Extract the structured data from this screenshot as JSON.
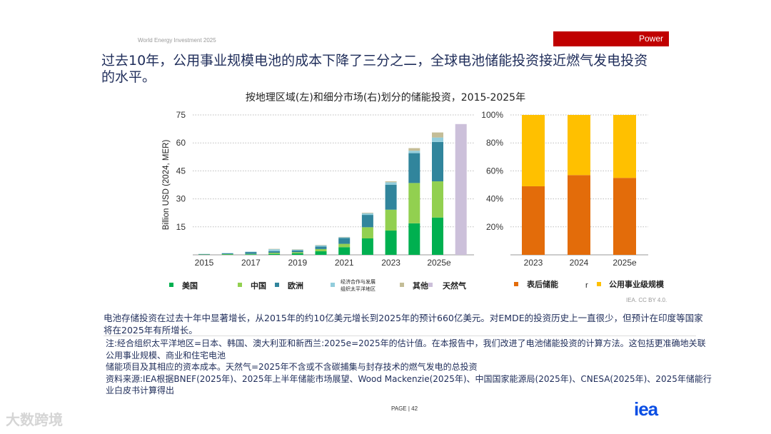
{
  "header": {
    "report": "World Energy Investment 2025",
    "section": "Power"
  },
  "title": "过去10年，公用事业规模电池的成本下降了三分之二，全球电池储能投资接近燃气发电投资的水平。",
  "chart_subtitle": "按地理区域(左)和细分市场(右)划分的储能投资，2015-2025年",
  "chart_data": [
    {
      "type": "bar",
      "stacked": true,
      "ylabel": "Billion USD (2024, MER)",
      "ylim": [
        0,
        75
      ],
      "yticks": [
        15,
        30,
        45,
        60,
        75
      ],
      "grid": true,
      "categories": [
        "2015",
        "2016",
        "2017",
        "2018",
        "2019",
        "2020",
        "2021",
        "2022",
        "2023",
        "2024",
        "2025e"
      ],
      "tick_labels": [
        "2015",
        "2017",
        "2019",
        "2021",
        "2023",
        "2025e"
      ],
      "series": [
        {
          "name": "美国",
          "color": "#00b050",
          "values": [
            0.1,
            0.2,
            0.3,
            0.5,
            0.8,
            1.9,
            4.1,
            8.8,
            13.0,
            16.9,
            20.0
          ]
        },
        {
          "name": "中国",
          "color": "#92d050",
          "values": [
            0.1,
            0.2,
            0.2,
            0.6,
            0.6,
            1.2,
            1.8,
            6.0,
            11.2,
            21.6,
            19.4
          ]
        },
        {
          "name": "欧洲",
          "color": "#31859c",
          "values": [
            0.2,
            0.4,
            1.0,
            0.9,
            0.9,
            1.3,
            3.1,
            6.6,
            13.4,
            16.0,
            21.1
          ]
        },
        {
          "name": "经济合作与发展组织太平洋地区",
          "color": "#92cddc",
          "values": [
            0.1,
            0.2,
            0.2,
            1.0,
            0.5,
            0.7,
            0.4,
            0.9,
            1.3,
            1.3,
            2.4
          ]
        },
        {
          "name": "其他",
          "color": "#c4bd97",
          "values": [
            0.0,
            0.0,
            0.0,
            0.2,
            0.2,
            0.2,
            0.2,
            0.3,
            0.5,
            1.4,
            2.7
          ]
        }
      ],
      "extra_bar": {
        "name": "天然气",
        "color": "#ccc0da",
        "value": 70.1
      }
    },
    {
      "type": "bar",
      "stacked": true,
      "percent": true,
      "ylim": [
        0,
        100
      ],
      "yticks": [
        "20%",
        "40%",
        "60%",
        "80%",
        "100%"
      ],
      "grid": true,
      "categories": [
        "2023",
        "2024",
        "2025e"
      ],
      "series": [
        {
          "name": "表后储能",
          "color": "#e36c0a",
          "values": [
            49,
            57,
            55
          ]
        },
        {
          "name": "公用事业级规模",
          "color": "#ffc000",
          "values": [
            51,
            43,
            45
          ]
        }
      ],
      "legend_separator": "r"
    }
  ],
  "credit": "IEA. CC BY 4.0.",
  "description": "电池存储投资在过去十年中显著增长，从2015年的约10亿美元增长到2025年的预计660亿美元。对EMDE的投资历史上一直很少，但预计在印度等国家将在2025年有所增长。",
  "notes": [
    "注:经合组织太平洋地区=日本、韩国、澳大利亚和新西兰:2025e=2025年的估计值。在本报告中，我们改进了电池储能投资的计算方法。这包括更准确地关联公用事业规模、商业和住宅电池",
    "储能项目及其相应的资本成本。天然气=2025年不含或不含碳捕集与封存技术的燃气发电的总投资",
    "资料来源:IEA根据BNEF(2025年)、2025年上半年储能市场展望、Wood Mackenzie(2025年)、中国国家能源局(2025年)、CNESA(2025年)、2025年储能行业白皮书计算得出"
  ],
  "footer": {
    "page": "PAGE | 42",
    "logo": "iea",
    "watermark": "大数跨境"
  }
}
